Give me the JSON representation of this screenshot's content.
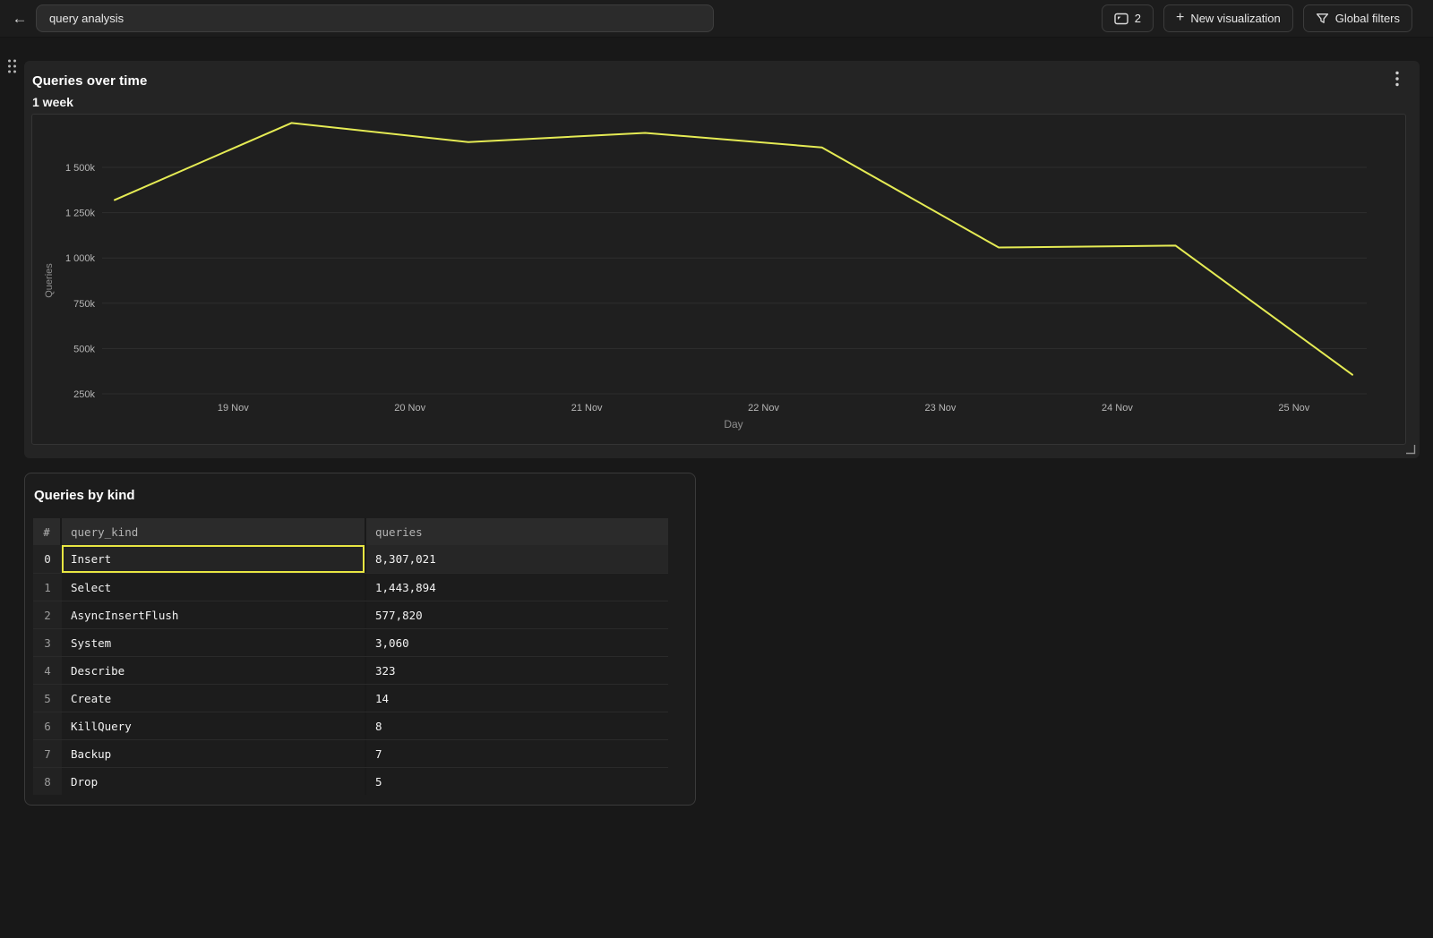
{
  "colors": {
    "page_bg": "#181818",
    "topbar_bg": "#1c1c1c",
    "panel_bg": "#242424",
    "chart_box_bg": "#1f1f1f",
    "table_panel_bg": "#1c1c1c",
    "line_color": "#e5eb54",
    "selection_border": "#e8e642",
    "grid_color": "#2e2e2e",
    "tick_text": "#b6b6b6",
    "axis_title_text": "#8f8f8f"
  },
  "topbar": {
    "back_icon": "←",
    "dashboard_name_input": {
      "value": "query analysis",
      "placeholder": ""
    },
    "panels_button": {
      "icon": "panel-window-icon",
      "count": "2"
    },
    "new_visualization_button": {
      "icon": "plus-icon",
      "plus": "+",
      "label": "New visualization"
    },
    "global_filters_button": {
      "icon": "funnel-filter-icon",
      "label": "Global filters"
    }
  },
  "chart_panel": {
    "title": "Queries over time",
    "subtitle": "1 week",
    "kebab_icon": "kebab-menu-icon",
    "resize_icon": "resize-corner-icon",
    "drag_icon": "drag-handle-dots-icon"
  },
  "chart_data": {
    "type": "line",
    "title": "Queries over time",
    "subtitle": "1 week",
    "xlabel": "Day",
    "ylabel": "Queries",
    "grid": true,
    "legend": false,
    "x_range_days": [
      0,
      7.1
    ],
    "y_range_k": [
      230,
      1790
    ],
    "x_ticks": [
      {
        "pos": 0.67,
        "label": "19 Nov"
      },
      {
        "pos": 1.67,
        "label": "20 Nov"
      },
      {
        "pos": 2.67,
        "label": "21 Nov"
      },
      {
        "pos": 3.67,
        "label": "22 Nov"
      },
      {
        "pos": 4.67,
        "label": "23 Nov"
      },
      {
        "pos": 5.67,
        "label": "24 Nov"
      },
      {
        "pos": 6.67,
        "label": "25 Nov"
      }
    ],
    "y_ticks": [
      {
        "value": 1500,
        "label": "1 500k"
      },
      {
        "value": 1250,
        "label": "1 250k"
      },
      {
        "value": 1000,
        "label": "1 000k"
      },
      {
        "value": 750,
        "label": "750k"
      },
      {
        "value": 500,
        "label": "500k"
      },
      {
        "value": 250,
        "label": "250k"
      }
    ],
    "series": [
      {
        "name": "Queries",
        "color": "#e5eb54",
        "points_day_k": [
          [
            0,
            1320
          ],
          [
            1,
            1745
          ],
          [
            2,
            1640
          ],
          [
            3,
            1690
          ],
          [
            4,
            1610
          ],
          [
            5,
            1058
          ],
          [
            6,
            1068
          ],
          [
            7,
            355
          ]
        ]
      }
    ]
  },
  "table_panel": {
    "title": "Queries by kind",
    "columns": [
      "#",
      "query_kind",
      "queries"
    ],
    "rows": [
      {
        "index": "0",
        "query_kind": "Insert",
        "queries": "8,307,021"
      },
      {
        "index": "1",
        "query_kind": "Select",
        "queries": "1,443,894"
      },
      {
        "index": "2",
        "query_kind": "AsyncInsertFlush",
        "queries": "577,820"
      },
      {
        "index": "3",
        "query_kind": "System",
        "queries": "3,060"
      },
      {
        "index": "4",
        "query_kind": "Describe",
        "queries": "323"
      },
      {
        "index": "5",
        "query_kind": "Create",
        "queries": "14"
      },
      {
        "index": "6",
        "query_kind": "KillQuery",
        "queries": "8"
      },
      {
        "index": "7",
        "query_kind": "Backup",
        "queries": "7"
      },
      {
        "index": "8",
        "query_kind": "Drop",
        "queries": "5"
      }
    ],
    "selected_cell": {
      "row_index": 0,
      "column": "query_kind"
    }
  }
}
